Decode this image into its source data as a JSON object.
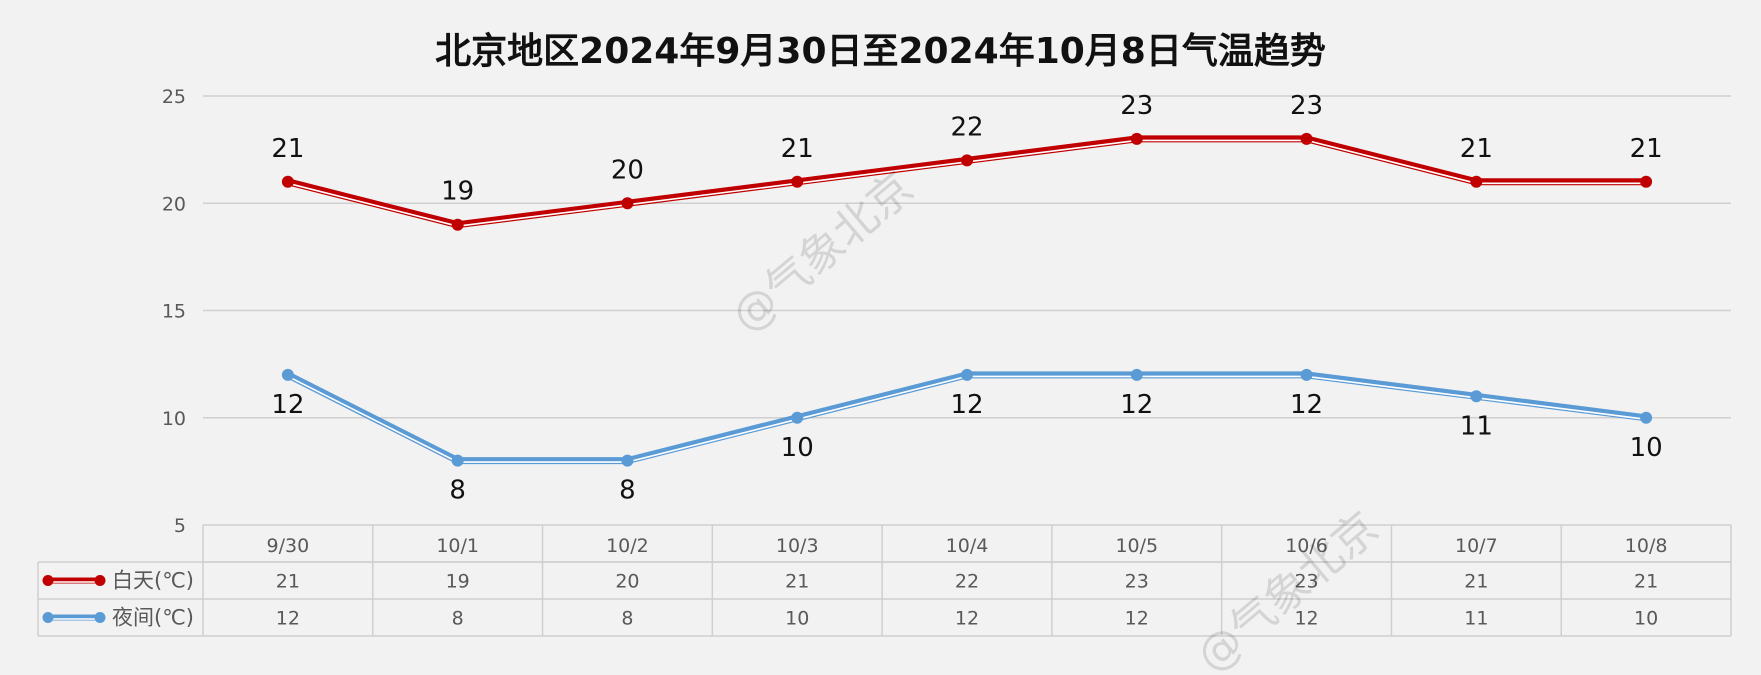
{
  "title": "北京地区2024年9月30日至2024年10月8日气温趋势",
  "watermark": "@气象北京",
  "chart_data": {
    "type": "line",
    "title": "北京地区2024年9月30日至2024年10月8日气温趋势",
    "categories": [
      "9/30",
      "10/1",
      "10/2",
      "10/3",
      "10/4",
      "10/5",
      "10/6",
      "10/7",
      "10/8"
    ],
    "ylim": [
      5,
      25
    ],
    "yticks": [
      5,
      10,
      15,
      20,
      25
    ],
    "grid": true,
    "legend": "data-table-left",
    "series": [
      {
        "name": "白天(℃)",
        "color": "#c00000",
        "values": [
          21,
          19,
          20,
          21,
          22,
          23,
          23,
          21,
          21
        ]
      },
      {
        "name": "夜间(℃)",
        "color": "#5b9bd5",
        "values": [
          12,
          8,
          8,
          10,
          12,
          12,
          12,
          11,
          10
        ]
      }
    ]
  }
}
